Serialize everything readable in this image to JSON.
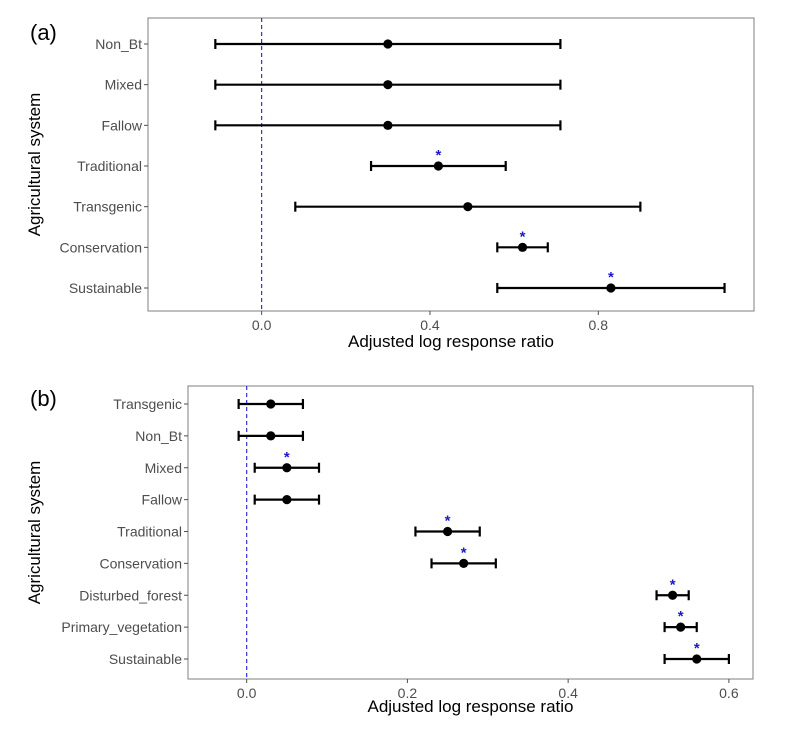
{
  "chart_data": [
    {
      "type": "forest",
      "panel_label": "(a)",
      "xlabel": "Adjusted log response ratio",
      "ylabel": "Agricultural system",
      "xlim": [
        -0.27,
        1.17
      ],
      "xticks": [
        0.0,
        0.4,
        0.8
      ],
      "xtick_labels": [
        "0.0",
        "0.4",
        "0.8"
      ],
      "reference_line": 0.0,
      "reference_line_color": "#3333dd",
      "point_color": "#000000",
      "star_color": "#1a1acc",
      "categories": [
        "Non_Bt",
        "Mixed",
        "Fallow",
        "Traditional",
        "Transgenic",
        "Conservation",
        "Sustainable"
      ],
      "values": [
        0.3,
        0.3,
        0.3,
        0.42,
        0.49,
        0.62,
        0.83
      ],
      "lower": [
        -0.11,
        -0.11,
        -0.11,
        0.26,
        0.08,
        0.56,
        0.56
      ],
      "upper": [
        0.71,
        0.71,
        0.71,
        0.58,
        0.9,
        0.68,
        1.1
      ],
      "significance": [
        "",
        "",
        "",
        "*",
        "",
        "*",
        "*"
      ],
      "grid": false
    },
    {
      "type": "forest",
      "panel_label": "(b)",
      "xlabel": "Adjusted log response ratio",
      "ylabel": "Agricultural system",
      "xlim": [
        -0.073,
        0.63
      ],
      "xticks": [
        0.0,
        0.2,
        0.4,
        0.6
      ],
      "xtick_labels": [
        "0.0",
        "0.2",
        "0.4",
        "0.6"
      ],
      "reference_line": 0.0,
      "reference_line_color": "#3333dd",
      "point_color": "#000000",
      "star_color": "#1a1acc",
      "categories": [
        "Transgenic",
        "Non_Bt",
        "Mixed",
        "Fallow",
        "Traditional",
        "Conservation",
        "Disturbed_forest",
        "Primary_vegetation",
        "Sustainable"
      ],
      "values": [
        0.03,
        0.03,
        0.05,
        0.05,
        0.25,
        0.27,
        0.53,
        0.54,
        0.56
      ],
      "lower": [
        -0.01,
        -0.01,
        0.01,
        0.01,
        0.21,
        0.23,
        0.51,
        0.52,
        0.52
      ],
      "upper": [
        0.07,
        0.07,
        0.09,
        0.09,
        0.29,
        0.31,
        0.55,
        0.56,
        0.6
      ],
      "significance": [
        "",
        "",
        "*",
        "",
        "*",
        "*",
        "*",
        "*",
        "*"
      ],
      "grid": false
    }
  ]
}
